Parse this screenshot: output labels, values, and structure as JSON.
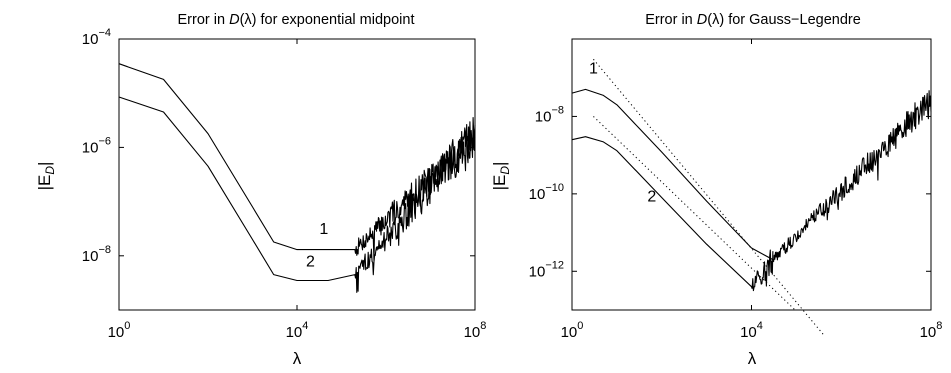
{
  "chart_data": [
    {
      "type": "line",
      "title": "Error in D(λ) for exponential midpoint",
      "title_parts": {
        "before": "Error in ",
        "italic": "D",
        "mid": "(λ)",
        "after": " for exponential midpoint"
      },
      "xlabel": "λ",
      "ylabel": {
        "base": "|E",
        "sub": "D",
        "end": "|"
      },
      "x_scale": "log",
      "y_scale": "log",
      "xlim": [
        1,
        100000000
      ],
      "ylim": [
        1e-09,
        0.0001
      ],
      "x_ticks": [
        {
          "value": 1,
          "base": "10",
          "exp": "0"
        },
        {
          "value": 10000,
          "base": "10",
          "exp": "4"
        },
        {
          "value": 100000000,
          "base": "10",
          "exp": "8"
        }
      ],
      "y_ticks": [
        {
          "value": 1e-08,
          "base": "10",
          "exp": "−8"
        },
        {
          "value": 1e-06,
          "base": "10",
          "exp": "−6"
        },
        {
          "value": 0.0001,
          "base": "10",
          "exp": "−4"
        }
      ],
      "grid": false,
      "series": [
        {
          "name": "1",
          "x": [
            1,
            10,
            100,
            1000,
            3000,
            10000,
            100000,
            200000
          ],
          "y": [
            3.5e-05,
            1.8e-05,
            1.8e-06,
            8e-08,
            1.8e-08,
            1.3e-08,
            1.3e-08,
            1.3e-08
          ],
          "noisy_tail": {
            "x_start": 200000,
            "x_end": 100000000,
            "y_end": 1.6e-06
          }
        },
        {
          "name": "2",
          "x": [
            1,
            10,
            100,
            1000,
            3000,
            10000,
            50000,
            200000
          ],
          "y": [
            8.5e-06,
            4.5e-06,
            4.5e-07,
            2e-08,
            4.5e-09,
            3.5e-09,
            3.5e-09,
            4.5e-09
          ],
          "noisy_tail": {
            "x_start": 200000,
            "x_end": 100000000,
            "y_end": 1.6e-06
          }
        }
      ],
      "annotations": [
        {
          "text": "1",
          "x": 40000,
          "y": 1.8e-08
        },
        {
          "text": "2",
          "x": 20000,
          "y": 4.5e-09
        }
      ]
    },
    {
      "type": "line",
      "title": "Error in D(λ) for Gauss−Legendre",
      "title_parts": {
        "before": "Error in ",
        "italic": "D",
        "mid": "(λ)",
        "after": " for Gauss−Legendre"
      },
      "xlabel": "λ",
      "ylabel": {
        "base": "|E",
        "sub": "D",
        "end": "|"
      },
      "x_scale": "log",
      "y_scale": "log",
      "xlim": [
        1,
        100000000
      ],
      "ylim": [
        1e-13,
        1e-06
      ],
      "x_ticks": [
        {
          "value": 1,
          "base": "10",
          "exp": "0"
        },
        {
          "value": 10000,
          "base": "10",
          "exp": "4"
        },
        {
          "value": 100000000,
          "base": "10",
          "exp": "8"
        }
      ],
      "y_ticks": [
        {
          "value": 1e-12,
          "base": "10",
          "exp": "−12"
        },
        {
          "value": 1e-10,
          "base": "10",
          "exp": "−10"
        },
        {
          "value": 1e-08,
          "base": "10",
          "exp": "−8"
        }
      ],
      "grid": false,
      "series": [
        {
          "name": "1",
          "x": [
            1,
            2,
            5,
            10,
            100,
            1000,
            10000,
            30000
          ],
          "y": [
            4e-08,
            5e-08,
            3.5e-08,
            2e-08,
            1.2e-09,
            6.5e-11,
            4e-12,
            2e-12
          ],
          "noisy_tail": {
            "x_start": 30000,
            "x_end": 100000000,
            "y_end": 2.5e-08
          }
        },
        {
          "name": "2",
          "x": [
            1,
            2,
            5,
            10,
            100,
            1000,
            10000
          ],
          "y": [
            2.5e-09,
            3e-09,
            2.2e-09,
            1.3e-09,
            8e-11,
            5e-12,
            4e-13
          ],
          "noisy_tail": {
            "x_start": 10000,
            "x_end": 30000,
            "y_end": 2e-12
          }
        }
      ],
      "reference_lines": [
        {
          "x": [
            3,
            400000
          ],
          "y": [
            3e-07,
            2.32e-14
          ]
        },
        {
          "x": [
            3,
            100000
          ],
          "y": [
            1e-08,
            9.3e-14
          ]
        }
      ],
      "annotations": [
        {
          "text": "1",
          "x": 3,
          "y": 8e-08
        },
        {
          "text": "2",
          "x": 60,
          "y": 4e-11
        }
      ]
    }
  ]
}
